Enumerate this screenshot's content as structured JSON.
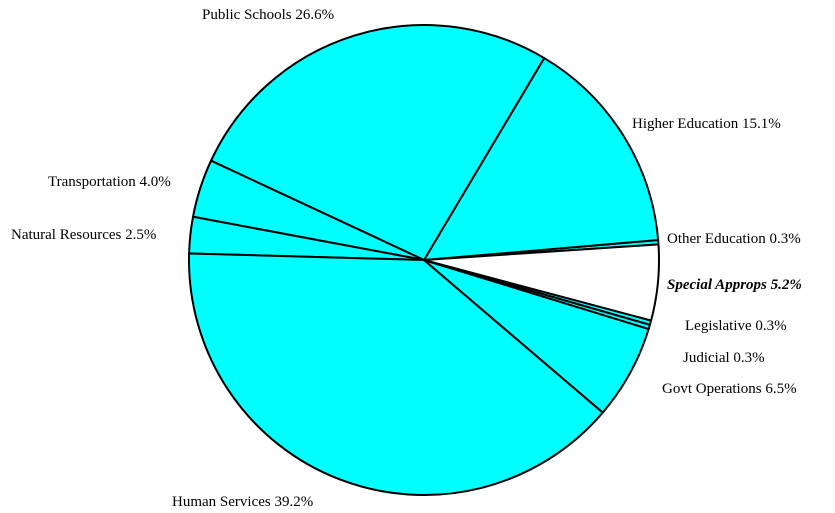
{
  "chart_data": {
    "type": "pie",
    "title": "",
    "slices": [
      {
        "label": "Other Education 0.3%",
        "value": 0.3,
        "color": "#00ffff",
        "highlight": false
      },
      {
        "label": "Higher Education 15.1%",
        "value": 15.1,
        "color": "#00ffff",
        "highlight": false
      },
      {
        "label": "Public Schools 26.6%",
        "value": 26.6,
        "color": "#00ffff",
        "highlight": false
      },
      {
        "label": "Transportation 4.0%",
        "value": 4.0,
        "color": "#00ffff",
        "highlight": false
      },
      {
        "label": "Natural Resources 2.5%",
        "value": 2.5,
        "color": "#00ffff",
        "highlight": false
      },
      {
        "label": "Human Services 39.2%",
        "value": 39.2,
        "color": "#00ffff",
        "highlight": false
      },
      {
        "label": "Govt Operations 6.5%",
        "value": 6.5,
        "color": "#00ffff",
        "highlight": false
      },
      {
        "label": "Judicial 0.3%",
        "value": 0.3,
        "color": "#00ffff",
        "highlight": false
      },
      {
        "label": "Legislative 0.3%",
        "value": 0.3,
        "color": "#00ffff",
        "highlight": false
      },
      {
        "label": "Special Approps 5.2%",
        "value": 5.2,
        "color": "#ffffff",
        "highlight": true
      }
    ]
  }
}
